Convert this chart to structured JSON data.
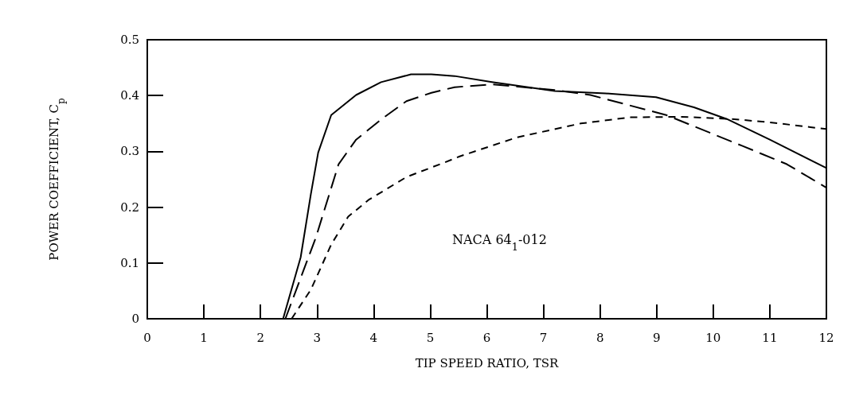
{
  "chart_data": {
    "type": "line",
    "xlabel": "TIP SPEED RATIO, TSR",
    "ylabel": "POWER COEFFICIENT, C$_{p}$",
    "annotations": [
      "NACA 64$_{1}$-012"
    ],
    "xlim": [
      0,
      12
    ],
    "xticks": [
      0,
      1,
      2,
      3,
      4,
      5,
      6,
      7,
      8,
      9,
      10,
      11,
      12
    ],
    "ylim": [
      0,
      0.5
    ],
    "yticks": [
      0,
      0.1,
      0.2,
      0.3,
      0.4,
      0.5
    ],
    "marker": "none",
    "series": [
      {
        "color": "#000000",
        "line_style": "solid",
        "x": [
          0,
          2.4,
          2.71,
          2.89,
          3.02,
          3.25,
          3.69,
          4.13,
          4.66,
          5.02,
          5.43,
          6.09,
          7.2,
          8.1,
          8.99,
          9.66,
          10.24,
          11.0,
          12
        ],
        "values": [
          0,
          0,
          0.11,
          0.223,
          0.298,
          0.365,
          0.401,
          0.424,
          0.438,
          0.438,
          0.435,
          0.424,
          0.408,
          0.404,
          0.397,
          0.379,
          0.358,
          0.321,
          0.27
        ]
      },
      {
        "color": "#000000",
        "line_style": "dashed",
        "x": [
          2.44,
          2.98,
          3.38,
          3.69,
          4.13,
          4.58,
          5.02,
          5.43,
          6.09,
          7.2,
          7.83,
          9.17,
          10.51,
          11.3,
          12
        ],
        "values": [
          0,
          0.146,
          0.277,
          0.321,
          0.357,
          0.39,
          0.405,
          0.415,
          0.42,
          0.41,
          0.401,
          0.365,
          0.31,
          0.277,
          0.235
        ]
      },
      {
        "color": "#000000",
        "line_style": "dotted",
        "x": [
          2.55,
          2.89,
          3.25,
          3.55,
          3.91,
          4.58,
          5.25,
          5.52,
          6.53,
          7.66,
          8.54,
          9.44,
          10.33,
          11.0,
          12
        ],
        "values": [
          0,
          0.052,
          0.133,
          0.183,
          0.213,
          0.254,
          0.28,
          0.291,
          0.325,
          0.35,
          0.361,
          0.362,
          0.358,
          0.352,
          0.34
        ]
      }
    ]
  }
}
